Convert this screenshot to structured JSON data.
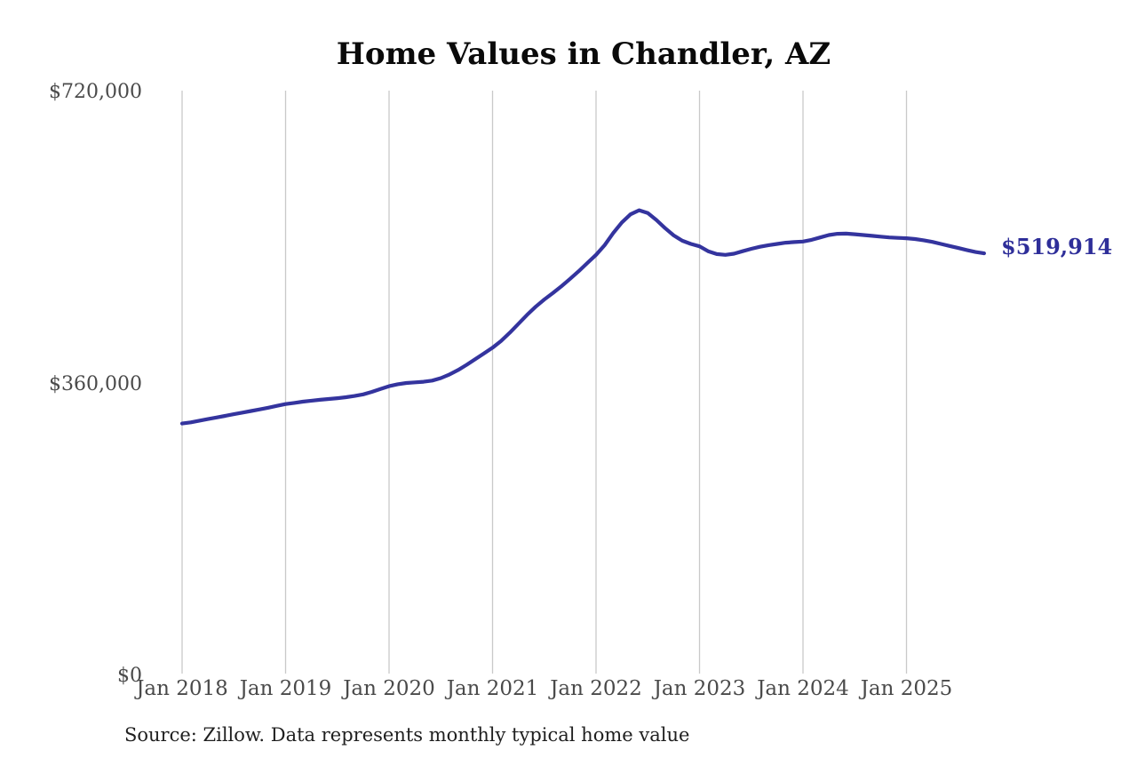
{
  "chart_data": {
    "type": "line",
    "title": "Home Values in Chandler, AZ",
    "series_name": "Monthly typical home value",
    "source_note": "Source: Zillow. Data represents monthly typical home value",
    "end_label": "$519,914",
    "last_value": 519914,
    "line_color": "#34349e",
    "end_label_color": "#2e2e99",
    "grid_color": "#c9c9c9",
    "tick_label_color": "#4a4a4a",
    "grid": "vertical-only",
    "legend": "none",
    "ylim": [
      0,
      720000
    ],
    "y_ticks": [
      0,
      360000,
      720000
    ],
    "y_tick_labels": [
      "$0",
      "$360,000",
      "$720,000"
    ],
    "x_tick_labels": [
      "Jan 2018",
      "Jan 2019",
      "Jan 2020",
      "Jan 2021",
      "Jan 2022",
      "Jan 2023",
      "Jan 2024",
      "Jan 2025"
    ],
    "x": [
      "2018-01",
      "2018-02",
      "2018-03",
      "2018-04",
      "2018-05",
      "2018-06",
      "2018-07",
      "2018-08",
      "2018-09",
      "2018-10",
      "2018-11",
      "2018-12",
      "2019-01",
      "2019-02",
      "2019-03",
      "2019-04",
      "2019-05",
      "2019-06",
      "2019-07",
      "2019-08",
      "2019-09",
      "2019-10",
      "2019-11",
      "2019-12",
      "2020-01",
      "2020-02",
      "2020-03",
      "2020-04",
      "2020-05",
      "2020-06",
      "2020-07",
      "2020-08",
      "2020-09",
      "2020-10",
      "2020-11",
      "2020-12",
      "2021-01",
      "2021-02",
      "2021-03",
      "2021-04",
      "2021-05",
      "2021-06",
      "2021-07",
      "2021-08",
      "2021-09",
      "2021-10",
      "2021-11",
      "2021-12",
      "2022-01",
      "2022-02",
      "2022-03",
      "2022-04",
      "2022-05",
      "2022-06",
      "2022-07",
      "2022-08",
      "2022-09",
      "2022-10",
      "2022-11",
      "2022-12",
      "2023-01",
      "2023-02",
      "2023-03",
      "2023-04",
      "2023-05",
      "2023-06",
      "2023-07",
      "2023-08",
      "2023-09",
      "2023-10",
      "2023-11",
      "2023-12",
      "2024-01",
      "2024-02",
      "2024-03",
      "2024-04",
      "2024-05",
      "2024-06",
      "2024-07",
      "2024-08",
      "2024-09",
      "2024-10",
      "2024-11",
      "2024-12",
      "2025-01",
      "2025-02",
      "2025-03",
      "2025-04",
      "2025-05",
      "2025-06",
      "2025-07",
      "2025-08",
      "2025-09",
      "2025-10"
    ],
    "values": [
      310000,
      311500,
      313500,
      315500,
      317500,
      319500,
      321500,
      323500,
      325500,
      327500,
      329500,
      331800,
      334000,
      335500,
      337000,
      338200,
      339300,
      340300,
      341300,
      342500,
      344000,
      346000,
      349000,
      352500,
      356000,
      358500,
      360000,
      360800,
      361500,
      363000,
      366000,
      370500,
      376000,
      382500,
      389500,
      396500,
      403500,
      412000,
      422000,
      433000,
      444000,
      454000,
      463000,
      471000,
      479500,
      488500,
      498000,
      508000,
      518000,
      530000,
      545000,
      558000,
      568000,
      573000,
      569500,
      561000,
      551000,
      542000,
      535500,
      531500,
      528500,
      522500,
      519000,
      518000,
      519500,
      522500,
      525500,
      528000,
      530000,
      531500,
      533000,
      533800,
      534500,
      536500,
      539500,
      542500,
      544000,
      544200,
      543500,
      542500,
      541500,
      540500,
      539500,
      539000,
      538500,
      537500,
      536000,
      534000,
      531500,
      529000,
      526500,
      524000,
      521500,
      519914
    ]
  }
}
